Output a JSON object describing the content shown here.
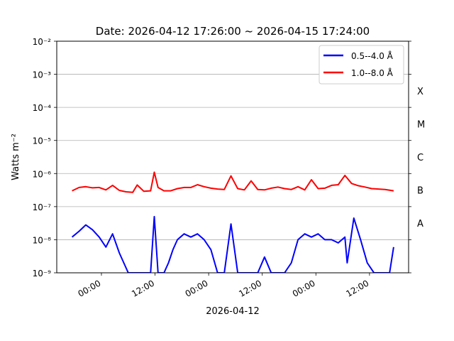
{
  "chart_data": {
    "type": "line",
    "title": "Date: 2026-04-12 17:26:00 ~ 2026-04-15 17:24:00",
    "xlabel": "2026-04-12",
    "ylabel": "Watts m⁻²",
    "yscale": "log",
    "ylim": [
      1e-09,
      0.01
    ],
    "xlim": [
      "2026-04-12 14:00",
      "2026-04-15 20:45"
    ],
    "grid": "horizontal",
    "legend_position": "top-right",
    "x_ticks": [
      {
        "t": "2026-04-13 00:00",
        "label": "00:00"
      },
      {
        "t": "2026-04-13 12:00",
        "label": "12:00"
      },
      {
        "t": "2026-04-14 00:00",
        "label": "00:00"
      },
      {
        "t": "2026-04-14 12:00",
        "label": "12:00"
      },
      {
        "t": "2026-04-15 00:00",
        "label": "00:00"
      },
      {
        "t": "2026-04-15 12:00",
        "label": "12:00"
      }
    ],
    "y_ticks": [
      {
        "exp": -9,
        "label": "10⁻⁹"
      },
      {
        "exp": -8,
        "label": "10⁻⁸"
      },
      {
        "exp": -7,
        "label": "10⁻⁷"
      },
      {
        "exp": -6,
        "label": "10⁻⁶"
      },
      {
        "exp": -5,
        "label": "10⁻⁵"
      },
      {
        "exp": -4,
        "label": "10⁻⁴"
      },
      {
        "exp": -3,
        "label": "10⁻³"
      },
      {
        "exp": -2,
        "label": "10⁻²"
      }
    ],
    "flare_classes": [
      {
        "label": "A",
        "exp": -7.5
      },
      {
        "label": "B",
        "exp": -6.5
      },
      {
        "label": "C",
        "exp": -5.5
      },
      {
        "label": "M",
        "exp": -4.5
      },
      {
        "label": "X",
        "exp": -3.5
      }
    ],
    "series": [
      {
        "name": "0.5--4.0 Å",
        "color": "#0000ff",
        "x": [
          "2026-04-12 17:26",
          "2026-04-12 19:00",
          "2026-04-12 20:30",
          "2026-04-12 22:00",
          "2026-04-12 23:30",
          "2026-04-13 01:00",
          "2026-04-13 02:30",
          "2026-04-13 04:00",
          "2026-04-13 05:00",
          "2026-04-13 06:00",
          "2026-04-13 07:00",
          "2026-04-13 08:00",
          "2026-04-13 09:00",
          "2026-04-13 10:00",
          "2026-04-13 11:00",
          "2026-04-13 11:50",
          "2026-04-13 12:40",
          "2026-04-13 14:00",
          "2026-04-13 15:00",
          "2026-04-13 16:00",
          "2026-04-13 17:00",
          "2026-04-13 18:30",
          "2026-04-13 20:00",
          "2026-04-13 21:30",
          "2026-04-13 23:00",
          "2026-04-14 00:30",
          "2026-04-14 02:00",
          "2026-04-14 03:30",
          "2026-04-14 05:00",
          "2026-04-14 06:30",
          "2026-04-14 08:00",
          "2026-04-14 09:30",
          "2026-04-14 11:00",
          "2026-04-14 12:30",
          "2026-04-14 14:00",
          "2026-04-14 15:30",
          "2026-04-14 17:00",
          "2026-04-14 18:30",
          "2026-04-14 20:00",
          "2026-04-14 21:30",
          "2026-04-14 23:00",
          "2026-04-15 00:30",
          "2026-04-15 02:00",
          "2026-04-15 03:30",
          "2026-04-15 05:00",
          "2026-04-15 06:30",
          "2026-04-15 07:00",
          "2026-04-15 08:30",
          "2026-04-15 10:00",
          "2026-04-15 11:30",
          "2026-04-15 13:00",
          "2026-04-15 14:30",
          "2026-04-15 15:30",
          "2026-04-15 16:30",
          "2026-04-15 17:24"
        ],
        "y": [
          1.2e-08,
          1.8e-08,
          2.8e-08,
          2e-08,
          1.2e-08,
          6e-09,
          1.5e-08,
          4e-09,
          2e-09,
          1e-09,
          1e-09,
          1e-09,
          1e-09,
          1e-09,
          1e-09,
          5e-08,
          1e-09,
          1e-09,
          2e-09,
          5e-09,
          1e-08,
          1.5e-08,
          1.2e-08,
          1.5e-08,
          1e-08,
          5e-09,
          1e-09,
          1e-09,
          3e-08,
          1e-09,
          1e-09,
          1e-09,
          1e-09,
          3e-09,
          1e-09,
          1e-09,
          1e-09,
          2e-09,
          1e-08,
          1.5e-08,
          1.2e-08,
          1.5e-08,
          1e-08,
          1e-08,
          8e-09,
          1.2e-08,
          2e-09,
          4.5e-08,
          1e-08,
          2e-09,
          1e-09,
          1e-09,
          1e-09,
          1e-09,
          6e-09
        ]
      },
      {
        "name": "1.0--8.0 Å",
        "color": "#ff0000",
        "x": [
          "2026-04-12 17:26",
          "2026-04-12 19:00",
          "2026-04-12 20:30",
          "2026-04-12 22:00",
          "2026-04-12 23:30",
          "2026-04-13 01:00",
          "2026-04-13 02:30",
          "2026-04-13 04:00",
          "2026-04-13 05:30",
          "2026-04-13 07:00",
          "2026-04-13 08:00",
          "2026-04-13 09:30",
          "2026-04-13 11:00",
          "2026-04-13 11:50",
          "2026-04-13 12:40",
          "2026-04-13 14:00",
          "2026-04-13 15:30",
          "2026-04-13 17:00",
          "2026-04-13 18:30",
          "2026-04-13 20:00",
          "2026-04-13 21:30",
          "2026-04-13 23:00",
          "2026-04-14 00:30",
          "2026-04-14 02:00",
          "2026-04-14 03:30",
          "2026-04-14 05:00",
          "2026-04-14 06:30",
          "2026-04-14 08:00",
          "2026-04-14 09:30",
          "2026-04-14 11:00",
          "2026-04-14 12:30",
          "2026-04-14 14:00",
          "2026-04-14 15:30",
          "2026-04-14 17:00",
          "2026-04-14 18:30",
          "2026-04-14 20:00",
          "2026-04-14 21:30",
          "2026-04-14 23:00",
          "2026-04-15 00:30",
          "2026-04-15 02:00",
          "2026-04-15 03:30",
          "2026-04-15 05:00",
          "2026-04-15 06:30",
          "2026-04-15 08:00",
          "2026-04-15 09:30",
          "2026-04-15 11:00",
          "2026-04-15 12:30",
          "2026-04-15 14:00",
          "2026-04-15 15:30",
          "2026-04-15 17:24"
        ],
        "y": [
          3e-07,
          3.8e-07,
          4e-07,
          3.7e-07,
          3.8e-07,
          3.2e-07,
          4.4e-07,
          3.1e-07,
          2.8e-07,
          2.7e-07,
          4.5e-07,
          2.9e-07,
          3e-07,
          1.1e-06,
          3.8e-07,
          3e-07,
          3e-07,
          3.5e-07,
          3.8e-07,
          3.8e-07,
          4.6e-07,
          4e-07,
          3.6e-07,
          3.4e-07,
          3.3e-07,
          8.5e-07,
          3.5e-07,
          3.2e-07,
          6e-07,
          3.3e-07,
          3.2e-07,
          3.6e-07,
          3.9e-07,
          3.5e-07,
          3.3e-07,
          4e-07,
          3.2e-07,
          6.5e-07,
          3.5e-07,
          3.6e-07,
          4.4e-07,
          4.6e-07,
          8.8e-07,
          5e-07,
          4.3e-07,
          3.9e-07,
          3.5e-07,
          3.4e-07,
          3.3e-07,
          3e-07
        ]
      }
    ]
  }
}
